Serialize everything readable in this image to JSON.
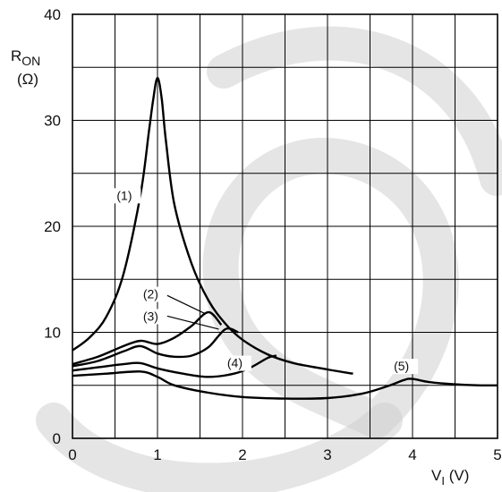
{
  "chart_data": {
    "type": "line",
    "ylabel": "RON",
    "ylabel_unit": "(Ω)",
    "xlabel": "VI (V)",
    "xlim": [
      0,
      5
    ],
    "ylim": [
      0,
      40
    ],
    "x_ticks": [
      "0",
      "1",
      "2",
      "3",
      "4",
      "5"
    ],
    "y_ticks": [
      "0",
      "10",
      "20",
      "30",
      "40"
    ],
    "grid": true,
    "series": [
      {
        "name": "(1)",
        "x": [
          0,
          0.2,
          0.4,
          0.6,
          0.8,
          0.9,
          0.95,
          1.0,
          1.05,
          1.1,
          1.2,
          1.4,
          1.6,
          1.8,
          2.0,
          2.3,
          2.6,
          3.0,
          3.3
        ],
        "y": [
          8.3,
          9.5,
          11.5,
          15.5,
          23.0,
          29.0,
          32.0,
          34.0,
          32.0,
          28.0,
          22.0,
          16.5,
          13.0,
          10.8,
          9.3,
          7.9,
          7.1,
          6.5,
          6.1
        ]
      },
      {
        "name": "(2)",
        "x": [
          0,
          0.3,
          0.6,
          0.8,
          1.0,
          1.2,
          1.4,
          1.6,
          1.75
        ],
        "y": [
          7.0,
          7.7,
          8.7,
          9.2,
          8.9,
          9.5,
          10.6,
          11.9,
          10.7
        ]
      },
      {
        "name": "(3)",
        "x": [
          0,
          0.3,
          0.6,
          0.8,
          1.0,
          1.2,
          1.4,
          1.6,
          1.8,
          1.95
        ],
        "y": [
          6.8,
          7.3,
          8.2,
          8.7,
          8.0,
          7.7,
          7.8,
          8.6,
          10.3,
          10.0
        ]
      },
      {
        "name": "(4)",
        "x": [
          0,
          0.3,
          0.6,
          0.8,
          1.0,
          1.3,
          1.6,
          1.9,
          2.1,
          2.3,
          2.4
        ],
        "y": [
          6.4,
          6.7,
          7.0,
          7.1,
          6.6,
          6.1,
          5.8,
          6.1,
          6.7,
          7.6,
          7.8
        ]
      },
      {
        "name": "(5)",
        "x": [
          0,
          0.4,
          0.8,
          1.0,
          1.2,
          1.6,
          2.0,
          2.5,
          3.0,
          3.4,
          3.7,
          3.9,
          4.0,
          4.2,
          4.5,
          4.8,
          5.0
        ],
        "y": [
          5.9,
          6.1,
          6.3,
          5.8,
          5.0,
          4.3,
          3.9,
          3.75,
          3.8,
          4.2,
          4.9,
          5.5,
          5.6,
          5.3,
          5.1,
          5.0,
          5.0
        ]
      }
    ],
    "annotations": [
      {
        "label": "(1)",
        "x": 0.52,
        "y": 22.5
      },
      {
        "label": "(2)",
        "x": 0.83,
        "y": 13.2
      },
      {
        "label": "(3)",
        "x": 0.83,
        "y": 11.1
      },
      {
        "label": "(4)",
        "x": 1.82,
        "y": 6.7
      },
      {
        "label": "(5)",
        "x": 3.78,
        "y": 6.4
      }
    ]
  }
}
